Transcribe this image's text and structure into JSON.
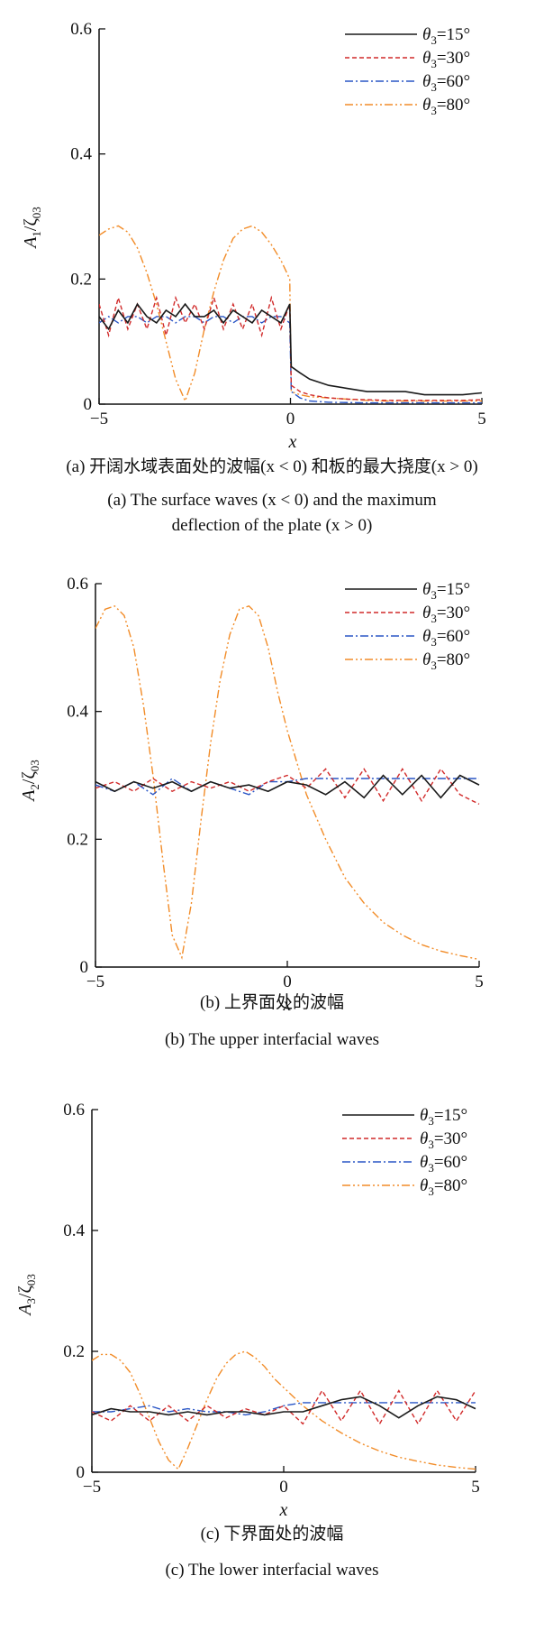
{
  "colors": {
    "theta15": "#1a1a1a",
    "theta30": "#d12a2a",
    "theta60": "#2a56c6",
    "theta80": "#f28c28"
  },
  "legend": [
    "θ3=15°",
    "θ3=30°",
    "θ3=60°",
    "θ3=80°"
  ],
  "captions": {
    "a_cn": "(a) 开阔水域表面处的波幅(x < 0) 和板的最大挠度(x > 0)",
    "a_en1": "(a) The surface waves (x < 0) and the maximum",
    "a_en2": "deflection of the plate (x > 0)",
    "b_cn": "(b) 上界面处的波幅",
    "b_en": "(b) The upper interfacial waves",
    "c_cn": "(c) 下界面处的波幅",
    "c_en": "(c) The lower interfacial waves"
  },
  "chart_data": [
    {
      "type": "line",
      "panel": "a",
      "xlabel": "x",
      "ylabel": "A1/ζ03",
      "xlim": [
        -5,
        5
      ],
      "ylim": [
        0,
        0.6
      ],
      "xticks": [
        -5,
        0,
        5
      ],
      "yticks": [
        0,
        0.2,
        0.4,
        0.6
      ],
      "xtick_labels": [
        "−5",
        "0",
        "5"
      ],
      "ytick_labels": [
        "0",
        "0.2",
        "0.4",
        "0.6"
      ],
      "legend_position": "top-right",
      "grid": false,
      "series": [
        {
          "name": "θ3=15°",
          "style": "solid",
          "x": [
            -5.0,
            -4.75,
            -4.5,
            -4.25,
            -4.0,
            -3.75,
            -3.5,
            -3.25,
            -3.0,
            -2.75,
            -2.5,
            -2.25,
            -2.0,
            -1.75,
            -1.5,
            -1.25,
            -1.0,
            -0.75,
            -0.5,
            -0.25,
            -0.02,
            0.02,
            0.25,
            0.5,
            1.0,
            1.5,
            2.0,
            2.5,
            3.0,
            3.5,
            4.0,
            4.5,
            5.0
          ],
          "y": [
            0.14,
            0.12,
            0.15,
            0.13,
            0.16,
            0.14,
            0.13,
            0.15,
            0.14,
            0.16,
            0.14,
            0.14,
            0.15,
            0.13,
            0.15,
            0.14,
            0.13,
            0.15,
            0.14,
            0.13,
            0.16,
            0.06,
            0.05,
            0.04,
            0.03,
            0.025,
            0.02,
            0.02,
            0.02,
            0.015,
            0.015,
            0.015,
            0.018
          ]
        },
        {
          "name": "θ3=30°",
          "style": "dash",
          "x": [
            -5.0,
            -4.75,
            -4.5,
            -4.25,
            -4.0,
            -3.75,
            -3.5,
            -3.25,
            -3.0,
            -2.75,
            -2.5,
            -2.25,
            -2.0,
            -1.75,
            -1.5,
            -1.25,
            -1.0,
            -0.75,
            -0.5,
            -0.25,
            -0.02,
            0.02,
            0.25,
            0.5,
            1.0,
            1.5,
            2.0,
            2.5,
            3.0,
            3.5,
            4.0,
            4.5,
            5.0
          ],
          "y": [
            0.16,
            0.11,
            0.17,
            0.12,
            0.16,
            0.12,
            0.17,
            0.11,
            0.17,
            0.13,
            0.16,
            0.12,
            0.17,
            0.12,
            0.16,
            0.12,
            0.16,
            0.11,
            0.17,
            0.12,
            0.16,
            0.03,
            0.02,
            0.015,
            0.01,
            0.008,
            0.007,
            0.006,
            0.006,
            0.006,
            0.006,
            0.006,
            0.007
          ]
        },
        {
          "name": "θ3=60°",
          "style": "dashdot",
          "x": [
            -5.0,
            -4.75,
            -4.5,
            -4.25,
            -4.0,
            -3.75,
            -3.5,
            -3.25,
            -3.0,
            -2.75,
            -2.5,
            -2.25,
            -2.0,
            -1.75,
            -1.5,
            -1.25,
            -1.0,
            -0.75,
            -0.5,
            -0.25,
            -0.02,
            0.02,
            0.25,
            0.5,
            1.0,
            2.0,
            3.0,
            4.0,
            5.0
          ],
          "y": [
            0.13,
            0.14,
            0.13,
            0.14,
            0.14,
            0.13,
            0.14,
            0.14,
            0.13,
            0.14,
            0.14,
            0.13,
            0.14,
            0.14,
            0.13,
            0.14,
            0.14,
            0.13,
            0.14,
            0.14,
            0.13,
            0.02,
            0.01,
            0.005,
            0.003,
            0.002,
            0.002,
            0.002,
            0.002
          ]
        },
        {
          "name": "θ3=80°",
          "style": "dashdotdot",
          "x": [
            -5.0,
            -4.75,
            -4.5,
            -4.25,
            -4.0,
            -3.75,
            -3.5,
            -3.25,
            -3.0,
            -2.75,
            -2.5,
            -2.25,
            -2.0,
            -1.75,
            -1.5,
            -1.25,
            -1.0,
            -0.75,
            -0.5,
            -0.25,
            -0.02,
            0.02,
            0.25,
            0.5,
            1.0,
            1.5,
            2.0,
            2.5,
            3.0,
            3.5,
            4.0,
            4.5,
            5.0
          ],
          "y": [
            0.27,
            0.28,
            0.285,
            0.275,
            0.25,
            0.21,
            0.16,
            0.1,
            0.04,
            0.005,
            0.05,
            0.12,
            0.18,
            0.23,
            0.265,
            0.28,
            0.285,
            0.275,
            0.255,
            0.23,
            0.2,
            0.02,
            0.015,
            0.012,
            0.01,
            0.008,
            0.006,
            0.005,
            0.005,
            0.005,
            0.005,
            0.005,
            0.005
          ]
        }
      ]
    },
    {
      "type": "line",
      "panel": "b",
      "xlabel": "x",
      "ylabel": "A2/ζ03",
      "xlim": [
        -5,
        5
      ],
      "ylim": [
        0,
        0.6
      ],
      "xticks": [
        -5,
        0,
        5
      ],
      "yticks": [
        0,
        0.2,
        0.4,
        0.6
      ],
      "xtick_labels": [
        "−5",
        "0",
        "5"
      ],
      "ytick_labels": [
        "0",
        "0.2",
        "0.4",
        "0.6"
      ],
      "legend_position": "top-right",
      "grid": false,
      "series": [
        {
          "name": "θ3=15°",
          "style": "solid",
          "x": [
            -5.0,
            -4.5,
            -4.0,
            -3.5,
            -3.0,
            -2.5,
            -2.0,
            -1.5,
            -1.0,
            -0.5,
            0.0,
            0.5,
            1.0,
            1.5,
            2.0,
            2.5,
            3.0,
            3.5,
            4.0,
            4.5,
            5.0
          ],
          "y": [
            0.29,
            0.275,
            0.29,
            0.28,
            0.29,
            0.275,
            0.29,
            0.28,
            0.285,
            0.275,
            0.29,
            0.285,
            0.27,
            0.29,
            0.265,
            0.3,
            0.27,
            0.3,
            0.265,
            0.3,
            0.285
          ]
        },
        {
          "name": "θ3=30°",
          "style": "dash",
          "x": [
            -5.0,
            -4.5,
            -4.0,
            -3.5,
            -3.0,
            -2.5,
            -2.0,
            -1.5,
            -1.0,
            -0.5,
            0.0,
            0.5,
            1.0,
            1.5,
            2.0,
            2.5,
            3.0,
            3.5,
            4.0,
            4.5,
            5.0
          ],
          "y": [
            0.28,
            0.29,
            0.275,
            0.295,
            0.275,
            0.29,
            0.28,
            0.29,
            0.275,
            0.29,
            0.3,
            0.28,
            0.31,
            0.265,
            0.31,
            0.26,
            0.31,
            0.26,
            0.31,
            0.27,
            0.255
          ]
        },
        {
          "name": "θ3=60°",
          "style": "dashdot",
          "x": [
            -5.0,
            -4.5,
            -4.0,
            -3.5,
            -3.0,
            -2.5,
            -2.0,
            -1.5,
            -1.0,
            -0.5,
            0.0,
            0.5,
            1.0,
            2.0,
            3.0,
            4.0,
            5.0
          ],
          "y": [
            0.285,
            0.275,
            0.29,
            0.27,
            0.295,
            0.275,
            0.29,
            0.28,
            0.27,
            0.29,
            0.29,
            0.295,
            0.295,
            0.295,
            0.295,
            0.295,
            0.295
          ]
        },
        {
          "name": "θ3=80°",
          "style": "dashdotdot",
          "x": [
            -5.0,
            -4.75,
            -4.5,
            -4.25,
            -4.0,
            -3.75,
            -3.5,
            -3.25,
            -3.0,
            -2.75,
            -2.5,
            -2.25,
            -2.0,
            -1.75,
            -1.5,
            -1.25,
            -1.0,
            -0.75,
            -0.5,
            -0.25,
            0.0,
            0.5,
            1.0,
            1.5,
            2.0,
            2.5,
            3.0,
            3.5,
            4.0,
            4.5,
            5.0
          ],
          "y": [
            0.53,
            0.56,
            0.565,
            0.55,
            0.5,
            0.41,
            0.3,
            0.17,
            0.05,
            0.015,
            0.1,
            0.23,
            0.35,
            0.45,
            0.52,
            0.56,
            0.565,
            0.55,
            0.5,
            0.43,
            0.37,
            0.27,
            0.2,
            0.14,
            0.1,
            0.07,
            0.05,
            0.035,
            0.025,
            0.018,
            0.012
          ]
        }
      ]
    },
    {
      "type": "line",
      "panel": "c",
      "xlabel": "x",
      "ylabel": "A3/ζ03",
      "xlim": [
        -5,
        5
      ],
      "ylim": [
        0,
        0.6
      ],
      "xticks": [
        -5,
        0,
        5
      ],
      "yticks": [
        0,
        0.2,
        0.4,
        0.6
      ],
      "xtick_labels": [
        "−5",
        "0",
        "5"
      ],
      "ytick_labels": [
        "0",
        "0.2",
        "0.4",
        "0.6"
      ],
      "legend_position": "top-right",
      "grid": false,
      "series": [
        {
          "name": "θ3=15°",
          "style": "solid",
          "x": [
            -5.0,
            -4.5,
            -4.0,
            -3.5,
            -3.0,
            -2.5,
            -2.0,
            -1.5,
            -1.0,
            -0.5,
            0.0,
            0.5,
            1.0,
            1.5,
            2.0,
            2.5,
            3.0,
            3.5,
            4.0,
            4.5,
            5.0
          ],
          "y": [
            0.095,
            0.105,
            0.1,
            0.1,
            0.095,
            0.1,
            0.095,
            0.1,
            0.1,
            0.095,
            0.1,
            0.1,
            0.11,
            0.12,
            0.125,
            0.11,
            0.09,
            0.11,
            0.125,
            0.12,
            0.105
          ]
        },
        {
          "name": "θ3=30°",
          "style": "dash",
          "x": [
            -5.0,
            -4.5,
            -4.0,
            -3.5,
            -3.0,
            -2.5,
            -2.0,
            -1.5,
            -1.0,
            -0.5,
            0.0,
            0.5,
            1.0,
            1.5,
            2.0,
            2.5,
            3.0,
            3.5,
            4.0,
            4.5,
            5.0
          ],
          "y": [
            0.1,
            0.085,
            0.11,
            0.085,
            0.11,
            0.085,
            0.11,
            0.09,
            0.105,
            0.095,
            0.11,
            0.08,
            0.135,
            0.085,
            0.135,
            0.08,
            0.135,
            0.08,
            0.135,
            0.085,
            0.135
          ]
        },
        {
          "name": "θ3=60°",
          "style": "dashdot",
          "x": [
            -5.0,
            -4.5,
            -4.0,
            -3.5,
            -3.0,
            -2.5,
            -2.0,
            -1.5,
            -1.0,
            -0.5,
            0.0,
            0.5,
            1.0,
            1.5,
            2.0,
            3.0,
            4.0,
            5.0
          ],
          "y": [
            0.1,
            0.1,
            0.105,
            0.11,
            0.1,
            0.105,
            0.1,
            0.1,
            0.095,
            0.1,
            0.11,
            0.115,
            0.115,
            0.115,
            0.115,
            0.115,
            0.115,
            0.115
          ]
        },
        {
          "name": "θ3=80°",
          "style": "dashdotdot",
          "x": [
            -5.0,
            -4.75,
            -4.5,
            -4.25,
            -4.0,
            -3.75,
            -3.5,
            -3.25,
            -3.0,
            -2.75,
            -2.5,
            -2.25,
            -2.0,
            -1.75,
            -1.5,
            -1.25,
            -1.0,
            -0.75,
            -0.5,
            -0.25,
            0.0,
            0.5,
            1.0,
            1.5,
            2.0,
            2.5,
            3.0,
            3.5,
            4.0,
            4.5,
            5.0
          ],
          "y": [
            0.185,
            0.195,
            0.195,
            0.185,
            0.165,
            0.13,
            0.09,
            0.05,
            0.02,
            0.005,
            0.04,
            0.08,
            0.12,
            0.155,
            0.18,
            0.195,
            0.2,
            0.19,
            0.175,
            0.155,
            0.14,
            0.11,
            0.085,
            0.065,
            0.048,
            0.035,
            0.025,
            0.018,
            0.012,
            0.008,
            0.005
          ]
        }
      ]
    }
  ]
}
